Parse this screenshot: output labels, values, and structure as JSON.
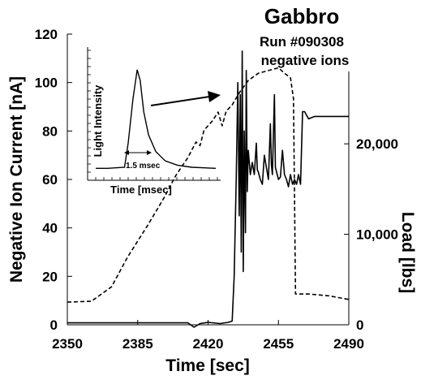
{
  "chart_data": {
    "type": "line",
    "title": "Gabbro",
    "subtitle_lines": [
      "Run #090308",
      "negative ions"
    ],
    "xlabel": "Time [sec]",
    "ylabel_left": "Negative Ion Current [nA]",
    "ylabel_right": "Load [lbs]",
    "xlim": [
      2350,
      2490
    ],
    "ylim_left": [
      0,
      120
    ],
    "ylim_right": [
      0,
      28000
    ],
    "x_ticks": [
      "2350",
      "2385",
      "2420",
      "2455",
      "2490"
    ],
    "y_left_ticks": [
      "0",
      "20",
      "40",
      "60",
      "80",
      "100",
      "120"
    ],
    "y_right_ticks": [
      "0",
      "10,000",
      "20,000"
    ],
    "series": [
      {
        "axis": "left",
        "style": "solid",
        "points": [
          [
            2350,
            0.8
          ],
          [
            2380,
            0.8
          ],
          [
            2410,
            0.8
          ],
          [
            2413,
            -1
          ],
          [
            2416,
            0.5
          ],
          [
            2420,
            1
          ],
          [
            2426,
            0.5
          ],
          [
            2430,
            1
          ],
          [
            2432,
            1.5
          ],
          [
            2433,
            20
          ],
          [
            2434,
            60
          ],
          [
            2434.8,
            100
          ],
          [
            2435.5,
            45
          ],
          [
            2436,
            95
          ],
          [
            2436.5,
            30
          ],
          [
            2437,
            113
          ],
          [
            2437.5,
            22
          ],
          [
            2438,
            80
          ],
          [
            2438.6,
            38
          ],
          [
            2439,
            105
          ],
          [
            2439.5,
            55
          ],
          [
            2440,
            72
          ],
          [
            2441,
            62
          ],
          [
            2442,
            67
          ],
          [
            2443,
            62
          ],
          [
            2444,
            75
          ],
          [
            2444.5,
            64
          ],
          [
            2445,
            63
          ],
          [
            2446,
            60
          ],
          [
            2447,
            58
          ],
          [
            2448,
            70
          ],
          [
            2449,
            65
          ],
          [
            2450,
            60
          ],
          [
            2451,
            83
          ],
          [
            2451.5,
            66
          ],
          [
            2452,
            62
          ],
          [
            2453,
            95
          ],
          [
            2453.5,
            65
          ],
          [
            2455,
            60
          ],
          [
            2456,
            61
          ],
          [
            2457,
            72
          ],
          [
            2458,
            62
          ],
          [
            2459,
            60
          ],
          [
            2460,
            57
          ],
          [
            2461,
            62
          ],
          [
            2462,
            58
          ],
          [
            2463,
            60
          ],
          [
            2464,
            58
          ],
          [
            2465,
            62
          ],
          [
            2466,
            58
          ],
          [
            2467,
            88
          ],
          [
            2468,
            88
          ],
          [
            2470,
            85
          ],
          [
            2473,
            86
          ],
          [
            2478,
            86
          ],
          [
            2484,
            86
          ],
          [
            2490,
            86
          ]
        ]
      },
      {
        "axis": "right",
        "style": "dashed",
        "points": [
          [
            2350,
            2500
          ],
          [
            2362,
            2600
          ],
          [
            2372,
            4200
          ],
          [
            2380,
            7500
          ],
          [
            2390,
            11000
          ],
          [
            2398,
            14000
          ],
          [
            2404,
            16500
          ],
          [
            2410,
            18500
          ],
          [
            2414,
            20200
          ],
          [
            2416,
            19800
          ],
          [
            2418,
            21500
          ],
          [
            2422,
            22500
          ],
          [
            2425,
            23500
          ],
          [
            2427,
            22000
          ],
          [
            2429,
            23600
          ],
          [
            2432,
            24300
          ],
          [
            2436,
            25800
          ],
          [
            2440,
            27000
          ],
          [
            2445,
            27800
          ],
          [
            2450,
            28100
          ],
          [
            2455,
            28400
          ],
          [
            2458,
            27800
          ],
          [
            2461,
            27300
          ],
          [
            2462.5,
            25000
          ],
          [
            2463,
            14000
          ],
          [
            2463.5,
            3400
          ],
          [
            2470,
            3400
          ],
          [
            2480,
            3200
          ],
          [
            2490,
            2800
          ]
        ]
      }
    ],
    "inset": {
      "xlabel": "Time [msec]",
      "ylabel": "Light Intensity",
      "annotation": "1.5 msec",
      "pulse": [
        [
          0,
          0.06
        ],
        [
          0.1,
          0.06
        ],
        [
          0.24,
          0.07
        ],
        [
          0.27,
          0.3
        ],
        [
          0.31,
          0.72
        ],
        [
          0.345,
          1.0
        ],
        [
          0.37,
          0.9
        ],
        [
          0.4,
          0.6
        ],
        [
          0.44,
          0.38
        ],
        [
          0.5,
          0.22
        ],
        [
          0.58,
          0.13
        ],
        [
          0.68,
          0.09
        ],
        [
          0.8,
          0.07
        ],
        [
          1.0,
          0.06
        ]
      ]
    }
  }
}
